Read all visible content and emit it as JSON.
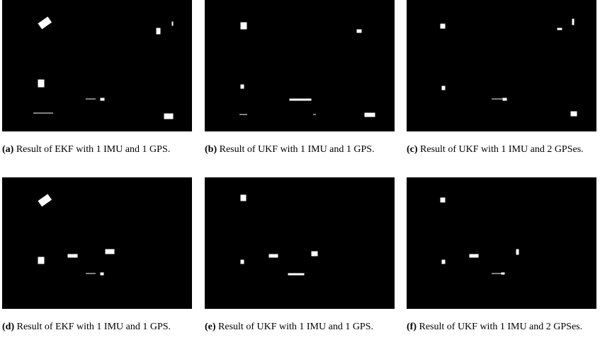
{
  "figures": [
    {
      "label": "(a)",
      "caption": "Result of EKF with 1 IMU and 1 GPS."
    },
    {
      "label": "(b)",
      "caption": "Result of UKF with 1 IMU and 1 GPS."
    },
    {
      "label": "(c)",
      "caption": "Result of UKF with 1 IMU and 2 GPSes."
    },
    {
      "label": "(d)",
      "caption": "Result of EKF with 1 IMU and 1 GPS."
    },
    {
      "label": "(e)",
      "caption": "Result of UKF with 1 IMU and 1 GPS."
    },
    {
      "label": "(f)",
      "caption": "Result of UKF with 1 IMU and 2 GPSes."
    }
  ]
}
